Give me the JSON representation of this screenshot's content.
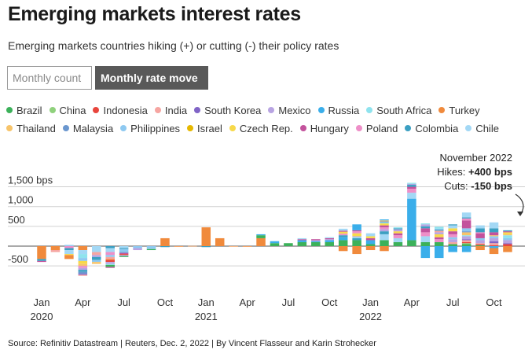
{
  "header": {
    "title": "Emerging markets interest rates",
    "subtitle": "Emerging markets countries hiking (+) or cutting (-) their policy rates"
  },
  "toggle": {
    "monthly_count_label": "Monthly count",
    "monthly_rate_move_label": "Monthly rate move",
    "selected": "Monthly rate move"
  },
  "footer": {
    "source": "Source: Refinitiv Datastream | Reuters, Dec. 2, 2022 | By Vincent Flasseur and Karin Strohecker"
  },
  "annotation": {
    "month": "November 2022",
    "hikes_label": "Hikes: ",
    "hikes_value": "+400 bps",
    "cuts_label": "Cuts: ",
    "cuts_value": "-150 bps"
  },
  "chart_data": {
    "type": "bar",
    "stacked": true,
    "unit": "bps",
    "ylim": [
      -1000,
      1600
    ],
    "y_ticks": [
      {
        "value": 1500,
        "label": "1,500 bps"
      },
      {
        "value": 1000,
        "label": "1,000"
      },
      {
        "value": 500,
        "label": "500"
      },
      {
        "value": -500,
        "label": "-500"
      }
    ],
    "x_ticks": [
      {
        "month": 0,
        "label": "Jan",
        "year": "2020"
      },
      {
        "month": 3,
        "label": "Apr",
        "year": ""
      },
      {
        "month": 6,
        "label": "Jul",
        "year": ""
      },
      {
        "month": 9,
        "label": "Oct",
        "year": ""
      },
      {
        "month": 12,
        "label": "Jan",
        "year": "2021"
      },
      {
        "month": 15,
        "label": "Apr",
        "year": ""
      },
      {
        "month": 18,
        "label": "Jul",
        "year": ""
      },
      {
        "month": 21,
        "label": "Oct",
        "year": ""
      },
      {
        "month": 24,
        "label": "Jan",
        "year": "2022"
      },
      {
        "month": 27,
        "label": "Apr",
        "year": ""
      },
      {
        "month": 30,
        "label": "Jul",
        "year": ""
      },
      {
        "month": 33,
        "label": "Oct",
        "year": ""
      }
    ],
    "months": [
      "Jan 2020",
      "Feb 2020",
      "Mar 2020",
      "Apr 2020",
      "May 2020",
      "Jun 2020",
      "Jul 2020",
      "Aug 2020",
      "Sep 2020",
      "Oct 2020",
      "Nov 2020",
      "Dec 2020",
      "Jan 2021",
      "Feb 2021",
      "Mar 2021",
      "Apr 2021",
      "May 2021",
      "Jun 2021",
      "Jul 2021",
      "Aug 2021",
      "Sep 2021",
      "Oct 2021",
      "Nov 2021",
      "Dec 2021",
      "Jan 2022",
      "Feb 2022",
      "Mar 2022",
      "Apr 2022",
      "May 2022",
      "Jun 2022",
      "Jul 2022",
      "Aug 2022",
      "Sep 2022",
      "Oct 2022",
      "Nov 2022"
    ],
    "legend": [
      {
        "name": "Brazil",
        "color": "#3cb15a"
      },
      {
        "name": "China",
        "color": "#8fd17c"
      },
      {
        "name": "Indonesia",
        "color": "#e8453c"
      },
      {
        "name": "India",
        "color": "#f6a5a1"
      },
      {
        "name": "South Korea",
        "color": "#8064c6"
      },
      {
        "name": "Mexico",
        "color": "#b8a4e2"
      },
      {
        "name": "Russia",
        "color": "#3aaeea"
      },
      {
        "name": "South Africa",
        "color": "#8fe3ee"
      },
      {
        "name": "Turkey",
        "color": "#f08a3c"
      },
      {
        "name": "Thailand",
        "color": "#f7c46a"
      },
      {
        "name": "Malaysia",
        "color": "#6b97cf"
      },
      {
        "name": "Philippines",
        "color": "#8ec9f1"
      },
      {
        "name": "Israel",
        "color": "#e6b800"
      },
      {
        "name": "Czech Rep.",
        "color": "#f7d94a"
      },
      {
        "name": "Hungary",
        "color": "#c3529c"
      },
      {
        "name": "Poland",
        "color": "#ee8fc8"
      },
      {
        "name": "Colombia",
        "color": "#3b9fc2"
      },
      {
        "name": "Chile",
        "color": "#a3d8f5"
      }
    ],
    "stacks": [
      [
        {
          "c": "Turkey",
          "v": -325
        },
        {
          "c": "Colombia",
          "v": -50
        },
        {
          "c": "Hungary",
          "v": -25
        }
      ],
      [
        {
          "c": "Turkey",
          "v": -100
        },
        {
          "c": "India",
          "v": -50
        }
      ],
      [
        {
          "c": "Poland",
          "v": -50
        },
        {
          "c": "Colombia",
          "v": -50
        },
        {
          "c": "Chile",
          "v": -100
        },
        {
          "c": "Czech Rep.",
          "v": -25
        },
        {
          "c": "Turkey",
          "v": -100
        },
        {
          "c": "Philippines",
          "v": 30
        }
      ],
      [
        {
          "c": "Turkey",
          "v": -100
        },
        {
          "c": "Chile",
          "v": -100
        },
        {
          "c": "South Africa",
          "v": -100
        },
        {
          "c": "Philippines",
          "v": -75
        },
        {
          "c": "Czech Rep.",
          "v": -75
        },
        {
          "c": "Thailand",
          "v": -50
        },
        {
          "c": "Poland",
          "v": -50
        },
        {
          "c": "Mexico",
          "v": -50
        },
        {
          "c": "Colombia",
          "v": -50
        },
        {
          "c": "Malaysia",
          "v": -50
        },
        {
          "c": "South Korea",
          "v": -25
        },
        {
          "c": "India",
          "v": -25
        }
      ],
      [
        {
          "c": "Chile",
          "v": -150
        },
        {
          "c": "India",
          "v": -75
        },
        {
          "c": "Mexico",
          "v": -50
        },
        {
          "c": "Colombia",
          "v": -75
        },
        {
          "c": "Philippines",
          "v": -50
        },
        {
          "c": "Thailand",
          "v": -50
        }
      ],
      [
        {
          "c": "Colombia",
          "v": -50
        },
        {
          "c": "Chile",
          "v": -100
        },
        {
          "c": "Poland",
          "v": -75
        },
        {
          "c": "Philippines",
          "v": -50
        },
        {
          "c": "India",
          "v": -50
        },
        {
          "c": "Turkey",
          "v": -25
        },
        {
          "c": "Indonesia",
          "v": -50
        },
        {
          "c": "Mexico",
          "v": -50
        },
        {
          "c": "South Africa",
          "v": -25
        },
        {
          "c": "Brazil",
          "v": -50
        },
        {
          "c": "Hungary",
          "v": -25
        }
      ],
      [
        {
          "c": "Chile",
          "v": -50
        },
        {
          "c": "Colombia",
          "v": -25
        },
        {
          "c": "Philippines",
          "v": -75
        },
        {
          "c": "Malaysia",
          "v": -25
        },
        {
          "c": "Hungary",
          "v": -25
        },
        {
          "c": "Indonesia",
          "v": -25
        },
        {
          "c": "Mexico",
          "v": -25
        },
        {
          "c": "Brazil",
          "v": -25
        }
      ],
      [
        {
          "c": "Philippines",
          "v": -50
        },
        {
          "c": "Mexico",
          "v": -50
        }
      ],
      [
        {
          "c": "Philippines",
          "v": -75
        },
        {
          "c": "Brazil",
          "v": -25
        }
      ],
      [
        {
          "c": "Turkey",
          "v": 200
        },
        {
          "c": "Colombia",
          "v": -25
        }
      ],
      [
        {
          "c": "Turkey",
          "v": -15
        }
      ],
      [
        {
          "c": "Turkey",
          "v": 5
        }
      ],
      [
        {
          "c": "Turkey",
          "v": 475
        },
        {
          "c": "Colombia",
          "v": -25
        }
      ],
      [
        {
          "c": "Turkey",
          "v": 200
        }
      ],
      [
        {
          "c": "Turkey",
          "v": -10
        }
      ],
      [
        {
          "c": "Turkey",
          "v": -15
        }
      ],
      [
        {
          "c": "Turkey",
          "v": 200
        },
        {
          "c": "Brazil",
          "v": 75
        },
        {
          "c": "Russia",
          "v": 25
        }
      ],
      [
        {
          "c": "Brazil",
          "v": 75
        },
        {
          "c": "Russia",
          "v": 50
        }
      ],
      [
        {
          "c": "Brazil",
          "v": 75
        }
      ],
      [
        {
          "c": "Brazil",
          "v": 100
        },
        {
          "c": "Russia",
          "v": 50
        },
        {
          "c": "Hungary",
          "v": 25
        },
        {
          "c": "Chile",
          "v": 25
        }
      ],
      [
        {
          "c": "Brazil",
          "v": 100
        },
        {
          "c": "Russia",
          "v": 25
        },
        {
          "c": "Mexico",
          "v": 25
        },
        {
          "c": "Hungary",
          "v": 25
        }
      ],
      [
        {
          "c": "Brazil",
          "v": 100
        },
        {
          "c": "Russia",
          "v": 50
        },
        {
          "c": "Mexico",
          "v": 25
        },
        {
          "c": "Hungary",
          "v": 25
        },
        {
          "c": "Chile",
          "v": 25
        }
      ],
      [
        {
          "c": "Brazil",
          "v": 150
        },
        {
          "c": "Russia",
          "v": 75
        },
        {
          "c": "Colombia",
          "v": 50
        },
        {
          "c": "Poland",
          "v": 40
        },
        {
          "c": "Czech Rep.",
          "v": 50
        },
        {
          "c": "Hungary",
          "v": 25
        },
        {
          "c": "Chile",
          "v": 50
        },
        {
          "c": "Turkey",
          "v": -125
        }
      ],
      [
        {
          "c": "Brazil",
          "v": 150
        },
        {
          "c": "Colombia",
          "v": 50
        },
        {
          "c": "South Africa",
          "v": 25
        },
        {
          "c": "Mexico",
          "v": 25
        },
        {
          "c": "Czech Rep.",
          "v": 75
        },
        {
          "c": "Poland",
          "v": 50
        },
        {
          "c": "Hungary",
          "v": 25
        },
        {
          "c": "Russia",
          "v": 150
        },
        {
          "c": "Turkey",
          "v": -200
        }
      ],
      [
        {
          "c": "Brazil",
          "v": 50
        },
        {
          "c": "Russia",
          "v": 100
        },
        {
          "c": "Hungary",
          "v": 50
        },
        {
          "c": "Czech Rep.",
          "v": 50
        },
        {
          "c": "Chile",
          "v": 75
        },
        {
          "c": "Turkey",
          "v": -100
        }
      ],
      [
        {
          "c": "Brazil",
          "v": 150
        },
        {
          "c": "Chile",
          "v": 150
        },
        {
          "c": "Colombia",
          "v": 75
        },
        {
          "c": "Mexico",
          "v": 50
        },
        {
          "c": "Poland",
          "v": 50
        },
        {
          "c": "Hungary",
          "v": 50
        },
        {
          "c": "Czech Rep.",
          "v": 50
        },
        {
          "c": "South Africa",
          "v": 25
        },
        {
          "c": "Malaysia",
          "v": 25
        },
        {
          "c": "Thailand",
          "v": 25
        },
        {
          "c": "Russia",
          "v": 25
        },
        {
          "c": "Turkey",
          "v": -125
        }
      ],
      [
        {
          "c": "Brazil",
          "v": 100
        },
        {
          "c": "Chile",
          "v": 100
        },
        {
          "c": "Poland",
          "v": 75
        },
        {
          "c": "Hungary",
          "v": 50
        },
        {
          "c": "Czech Rep.",
          "v": 50
        },
        {
          "c": "Mexico",
          "v": 50
        },
        {
          "c": "Colombia",
          "v": 25
        },
        {
          "c": "South Africa",
          "v": 25
        }
      ],
      [
        {
          "c": "Brazil",
          "v": 150
        },
        {
          "c": "Russia",
          "v": 1050
        },
        {
          "c": "Chile",
          "v": 150
        },
        {
          "c": "Poland",
          "v": 100
        },
        {
          "c": "Hungary",
          "v": 50
        },
        {
          "c": "Colombia",
          "v": 50
        },
        {
          "c": "Mexico",
          "v": 25
        },
        {
          "c": "South Africa",
          "v": 25
        }
      ],
      [
        {
          "c": "Brazil",
          "v": 100
        },
        {
          "c": "Chile",
          "v": 150
        },
        {
          "c": "Poland",
          "v": 100
        },
        {
          "c": "Hungary",
          "v": 100
        },
        {
          "c": "Colombia",
          "v": 50
        },
        {
          "c": "Mexico",
          "v": 50
        },
        {
          "c": "South Africa",
          "v": 25
        },
        {
          "c": "Russia",
          "v": -300
        }
      ],
      [
        {
          "c": "Brazil",
          "v": 100
        },
        {
          "c": "Poland",
          "v": 75
        },
        {
          "c": "Hungary",
          "v": 50
        },
        {
          "c": "Czech Rep.",
          "v": 75
        },
        {
          "c": "Mexico",
          "v": 50
        },
        {
          "c": "India",
          "v": 40
        },
        {
          "c": "Colombia",
          "v": 25
        },
        {
          "c": "Philippines",
          "v": 25
        },
        {
          "c": "South Africa",
          "v": 50
        },
        {
          "c": "Russia",
          "v": -300
        }
      ],
      [
        {
          "c": "Brazil",
          "v": 50
        },
        {
          "c": "India",
          "v": 50
        },
        {
          "c": "Mexico",
          "v": 75
        },
        {
          "c": "Philippines",
          "v": 50
        },
        {
          "c": "Poland",
          "v": 75
        },
        {
          "c": "Hungary",
          "v": 75
        },
        {
          "c": "Czech Rep.",
          "v": 75
        },
        {
          "c": "Chile",
          "v": 75
        },
        {
          "c": "Colombia",
          "v": 25
        },
        {
          "c": "Russia",
          "v": -150
        }
      ],
      [
        {
          "c": "Brazil",
          "v": 50
        },
        {
          "c": "China",
          "v": 25
        },
        {
          "c": "Indonesia",
          "v": 25
        },
        {
          "c": "India",
          "v": 50
        },
        {
          "c": "South Korea",
          "v": 25
        },
        {
          "c": "Mexico",
          "v": 75
        },
        {
          "c": "South Africa",
          "v": 25
        },
        {
          "c": "Thailand",
          "v": 75
        },
        {
          "c": "Malaysia",
          "v": 25
        },
        {
          "c": "Philippines",
          "v": 75
        },
        {
          "c": "Hungary",
          "v": 200
        },
        {
          "c": "Poland",
          "v": 50
        },
        {
          "c": "Colombia",
          "v": 25
        },
        {
          "c": "Chile",
          "v": 125
        },
        {
          "c": "Russia",
          "v": -150
        }
      ],
      [
        {
          "c": "Brazil",
          "v": 25
        },
        {
          "c": "Indonesia",
          "v": 25
        },
        {
          "c": "India",
          "v": 25
        },
        {
          "c": "Mexico",
          "v": 75
        },
        {
          "c": "Philippines",
          "v": 50
        },
        {
          "c": "Hungary",
          "v": 125
        },
        {
          "c": "Poland",
          "v": 25
        },
        {
          "c": "Colombia",
          "v": 100
        },
        {
          "c": "Chile",
          "v": 75
        },
        {
          "c": "Turkey",
          "v": -100
        }
      ],
      [
        {
          "c": "Indonesia",
          "v": 25
        },
        {
          "c": "India",
          "v": 50
        },
        {
          "c": "South Korea",
          "v": 50
        },
        {
          "c": "Mexico",
          "v": 75
        },
        {
          "c": "Philippines",
          "v": 50
        },
        {
          "c": "Thailand",
          "v": 25
        },
        {
          "c": "Hungary",
          "v": 75
        },
        {
          "c": "Colombia",
          "v": 100
        },
        {
          "c": "Chile",
          "v": 150
        },
        {
          "c": "Russia",
          "v": -50
        },
        {
          "c": "Turkey",
          "v": -150
        }
      ],
      [
        {
          "c": "Indonesia",
          "v": 50
        },
        {
          "c": "South Korea",
          "v": 25
        },
        {
          "c": "Mexico",
          "v": 75
        },
        {
          "c": "Philippines",
          "v": 50
        },
        {
          "c": "South Africa",
          "v": 75
        },
        {
          "c": "Thailand",
          "v": 25
        },
        {
          "c": "Czech Rep.",
          "v": 50
        },
        {
          "c": "Hungary",
          "v": 25
        },
        {
          "c": "Colombia",
          "v": 25
        },
        {
          "c": "Turkey",
          "v": -150
        }
      ]
    ]
  }
}
